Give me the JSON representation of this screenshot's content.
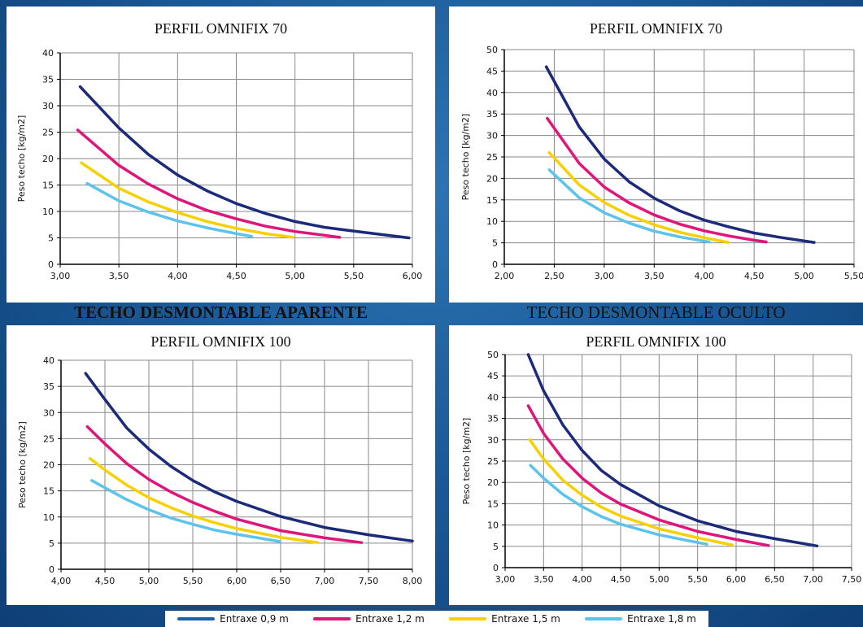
{
  "headings": {
    "aparente": "TECHO DESMONTABLE APARENTE",
    "oculto": "TECHO DESMONTABLE OCULTO"
  },
  "colors": {
    "series": [
      "#1b2a7a",
      "#e0157a",
      "#f8d000",
      "#5cc3ea"
    ],
    "legend": [
      "#1b63a8",
      "#e0157a",
      "#f8d000",
      "#5cc3ea"
    ]
  },
  "legend": {
    "items": [
      "Entraxe 0,9 m",
      "Entraxe 1,2 m",
      "Entraxe 1,5 m",
      "Entraxe 1,8 m"
    ]
  },
  "chart_data": [
    {
      "type": "line",
      "title": "PERFIL OMNIFIX 70",
      "ylabel": "Peso techo [kg/m2]",
      "xlabel": "",
      "xlim": [
        3.0,
        6.0
      ],
      "ylim": [
        0,
        40
      ],
      "xticks": [
        "3,00",
        "3,50",
        "4,00",
        "4,50",
        "5,00",
        "5,50",
        "6,00"
      ],
      "yticks": [
        "0",
        "5",
        "10",
        "15",
        "20",
        "25",
        "30",
        "35",
        "40"
      ],
      "grid": true,
      "series": [
        {
          "name": "Entraxe 0,9 m",
          "x": [
            3.17,
            3.5,
            3.75,
            4.0,
            4.25,
            4.5,
            4.75,
            5.0,
            5.25,
            5.5,
            5.75,
            5.97
          ],
          "y": [
            33.6,
            25.8,
            20.8,
            16.9,
            13.9,
            11.5,
            9.6,
            8.1,
            7.0,
            6.3,
            5.6,
            5.0
          ]
        },
        {
          "name": "Entraxe 1,2 m",
          "x": [
            3.15,
            3.5,
            3.75,
            4.0,
            4.25,
            4.5,
            4.75,
            5.0,
            5.25,
            5.38
          ],
          "y": [
            25.4,
            18.7,
            15.2,
            12.4,
            10.2,
            8.6,
            7.2,
            6.2,
            5.5,
            5.1
          ]
        },
        {
          "name": "Entraxe 1,5 m",
          "x": [
            3.18,
            3.5,
            3.75,
            4.0,
            4.25,
            4.5,
            4.75,
            4.98
          ],
          "y": [
            19.2,
            14.4,
            11.8,
            9.8,
            8.1,
            6.8,
            5.8,
            5.1
          ]
        },
        {
          "name": "Entraxe 1,8 m",
          "x": [
            3.23,
            3.5,
            3.75,
            4.0,
            4.25,
            4.5,
            4.63
          ],
          "y": [
            15.3,
            12.0,
            9.9,
            8.2,
            6.9,
            5.8,
            5.3
          ]
        }
      ]
    },
    {
      "type": "line",
      "title": "PERFIL OMNIFIX 70",
      "ylabel": "Peso techo [kg/m2]",
      "xlabel": "",
      "xlim": [
        2.0,
        5.5
      ],
      "ylim": [
        0,
        50
      ],
      "xticks": [
        "2,00",
        "2,50",
        "3,00",
        "3,50",
        "4,00",
        "4,50",
        "5,00",
        "5,50"
      ],
      "yticks": [
        "0",
        "5",
        "10",
        "15",
        "20",
        "25",
        "30",
        "35",
        "40",
        "45",
        "50"
      ],
      "grid": true,
      "series": [
        {
          "name": "Entraxe 0,9 m",
          "x": [
            2.42,
            2.75,
            3.0,
            3.25,
            3.5,
            3.75,
            4.0,
            4.25,
            4.5,
            4.75,
            5.1
          ],
          "y": [
            46.0,
            32.0,
            24.5,
            19.2,
            15.4,
            12.5,
            10.3,
            8.7,
            7.3,
            6.3,
            5.1
          ]
        },
        {
          "name": "Entraxe 1,2 m",
          "x": [
            2.43,
            2.75,
            3.0,
            3.25,
            3.5,
            3.75,
            4.0,
            4.25,
            4.5,
            4.62
          ],
          "y": [
            34.0,
            23.5,
            18.0,
            14.3,
            11.5,
            9.4,
            7.8,
            6.6,
            5.6,
            5.2
          ]
        },
        {
          "name": "Entraxe 1,5 m",
          "x": [
            2.45,
            2.75,
            3.0,
            3.25,
            3.5,
            3.75,
            4.0,
            4.24
          ],
          "y": [
            26.0,
            18.5,
            14.4,
            11.4,
            9.2,
            7.5,
            6.2,
            5.1
          ]
        },
        {
          "name": "Entraxe 1,8 m",
          "x": [
            2.45,
            2.75,
            3.0,
            3.25,
            3.5,
            3.75,
            4.0,
            4.05
          ],
          "y": [
            22.0,
            15.5,
            12.0,
            9.6,
            7.7,
            6.4,
            5.4,
            5.2
          ]
        }
      ]
    },
    {
      "type": "line",
      "title": "PERFIL OMNIFIX 100",
      "ylabel": "Peso techo [kg/m2]",
      "xlabel": "",
      "xlim": [
        4.0,
        8.0
      ],
      "ylim": [
        0,
        40
      ],
      "xticks": [
        "4,00",
        "4,50",
        "5,00",
        "5,50",
        "6,00",
        "6,50",
        "7,00",
        "7,50",
        "8,00"
      ],
      "yticks": [
        "0",
        "5",
        "10",
        "15",
        "20",
        "25",
        "30",
        "35",
        "40"
      ],
      "grid": true,
      "series": [
        {
          "name": "Entraxe 0,9 m",
          "x": [
            4.28,
            4.5,
            4.75,
            5.0,
            5.25,
            5.5,
            5.75,
            6.0,
            6.5,
            7.0,
            7.5,
            8.0
          ],
          "y": [
            37.5,
            32.5,
            27.0,
            23.0,
            19.7,
            17.0,
            14.8,
            13.0,
            10.1,
            8.0,
            6.6,
            5.4
          ]
        },
        {
          "name": "Entraxe 1,2 m",
          "x": [
            4.3,
            4.5,
            4.75,
            5.0,
            5.25,
            5.5,
            5.75,
            6.0,
            6.5,
            7.0,
            7.42
          ],
          "y": [
            27.3,
            24.0,
            20.2,
            17.2,
            14.8,
            12.8,
            11.1,
            9.6,
            7.4,
            6.0,
            5.1
          ]
        },
        {
          "name": "Entraxe 1,5 m",
          "x": [
            4.33,
            4.5,
            4.75,
            5.0,
            5.25,
            5.5,
            5.75,
            6.0,
            6.5,
            6.92
          ],
          "y": [
            21.2,
            19.0,
            16.1,
            13.7,
            11.8,
            10.2,
            8.9,
            7.8,
            6.1,
            5.1
          ]
        },
        {
          "name": "Entraxe 1,8 m",
          "x": [
            4.35,
            4.5,
            4.75,
            5.0,
            5.25,
            5.5,
            5.75,
            6.0,
            6.49
          ],
          "y": [
            17.0,
            15.6,
            13.3,
            11.4,
            9.8,
            8.6,
            7.5,
            6.7,
            5.3
          ]
        }
      ]
    },
    {
      "type": "line",
      "title": "PERFIL OMNIFIX 100",
      "ylabel": "Peso techo [kg/m2]",
      "xlabel": "",
      "xlim": [
        3.0,
        7.5
      ],
      "ylim": [
        0,
        50
      ],
      "xticks": [
        "3,00",
        "3,50",
        "4,00",
        "4,50",
        "5,00",
        "5,50",
        "6,00",
        "6,50",
        "7,00",
        "7,50"
      ],
      "yticks": [
        "0",
        "5",
        "10",
        "15",
        "20",
        "25",
        "30",
        "35",
        "40",
        "45",
        "50"
      ],
      "grid": true,
      "series": [
        {
          "name": "Entraxe 0,9 m",
          "x": [
            3.3,
            3.5,
            3.75,
            4.0,
            4.25,
            4.5,
            5.0,
            5.5,
            6.0,
            6.5,
            7.05
          ],
          "y": [
            50.0,
            41.5,
            33.5,
            27.5,
            22.8,
            19.5,
            14.5,
            11.0,
            8.5,
            6.8,
            5.1
          ]
        },
        {
          "name": "Entraxe 1,2 m",
          "x": [
            3.3,
            3.5,
            3.75,
            4.0,
            4.25,
            4.5,
            5.0,
            5.5,
            6.0,
            6.42
          ],
          "y": [
            38.0,
            31.5,
            25.5,
            21.0,
            17.5,
            14.9,
            11.2,
            8.5,
            6.6,
            5.2
          ]
        },
        {
          "name": "Entraxe 1,5 m",
          "x": [
            3.32,
            3.5,
            3.75,
            4.0,
            4.25,
            4.5,
            5.0,
            5.5,
            5.95
          ],
          "y": [
            30.0,
            25.5,
            20.5,
            17.0,
            14.2,
            12.1,
            9.1,
            7.0,
            5.3
          ]
        },
        {
          "name": "Entraxe 1,8 m",
          "x": [
            3.33,
            3.5,
            3.75,
            4.0,
            4.25,
            4.5,
            5.0,
            5.5,
            5.62
          ],
          "y": [
            24.0,
            21.0,
            17.2,
            14.3,
            12.0,
            10.2,
            7.7,
            5.9,
            5.5
          ]
        }
      ]
    }
  ]
}
